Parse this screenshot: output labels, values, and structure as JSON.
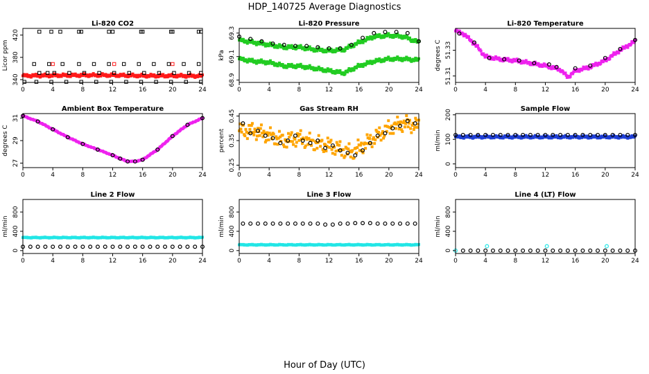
{
  "figure": {
    "title": "HDP_140725  Average Diagnostics",
    "xlabel": "Hour of Day (UTC)"
  },
  "chart_data": [
    {
      "type": "scatter",
      "title": "Li-820 CO2",
      "ylabel": "Licor ppm",
      "xlim": [
        0,
        24
      ],
      "xticks": [
        0,
        4,
        8,
        12,
        16,
        20,
        24
      ],
      "ylim": [
        335,
        432
      ],
      "yticks": [
        340,
        380,
        420
      ],
      "series": [
        {
          "style": "band",
          "color": "#ff1a1a",
          "x": [
            0,
            4,
            8,
            12,
            16,
            20,
            24
          ],
          "y": [
            347,
            347.5,
            348,
            348,
            347,
            347,
            346.5
          ],
          "spread": 3
        },
        {
          "style": "square",
          "color": "#000000",
          "x": [
            0.2,
            1.8,
            3.8,
            5.8,
            7.8,
            9.8,
            11.8,
            13.8,
            15.8,
            17.8,
            19.8,
            21.8,
            23.8
          ],
          "y": [
            336,
            336,
            336,
            336,
            336,
            336,
            336,
            336,
            336,
            336,
            336,
            336,
            336
          ]
        },
        {
          "style": "square",
          "color": "#000000",
          "x": [
            1.5,
            3.5,
            5.3,
            7.5,
            9.5,
            11.5,
            13.5,
            15.5,
            17.5,
            19.5,
            21.5,
            23.5
          ],
          "y": [
            368,
            368,
            368,
            368,
            368,
            368,
            368,
            368,
            368,
            368,
            368,
            368
          ]
        },
        {
          "style": "square",
          "color": "#000000",
          "x": [
            2.2,
            3.3,
            4.2,
            6.2,
            8.2,
            10.2,
            12.2,
            14.2,
            16.2,
            18.2,
            20.2,
            22.2,
            23.8
          ],
          "y": [
            352,
            352,
            352,
            352,
            352,
            352,
            352,
            352,
            352,
            352,
            352,
            352,
            352
          ]
        },
        {
          "style": "square",
          "color": "#000000",
          "x": [
            2.2,
            3.8,
            5.0,
            7.5,
            7.8,
            11.5,
            12.0,
            15.8,
            16.0,
            19.8,
            20.0,
            23.5,
            23.8
          ],
          "y": [
            426,
            426,
            426,
            426,
            426,
            426,
            426,
            426,
            426,
            426,
            426,
            426,
            426
          ]
        },
        {
          "style": "square",
          "color": "#ff1a1a",
          "x": [
            4.0,
            12.2,
            20.0
          ],
          "y": [
            368,
            368,
            368
          ]
        }
      ]
    },
    {
      "type": "scatter",
      "title": "Li-820 Pressure",
      "ylabel": "kPa",
      "xlim": [
        0,
        24
      ],
      "xticks": [
        0,
        4,
        8,
        12,
        16,
        20,
        24
      ],
      "ylim": [
        68.88,
        69.34
      ],
      "yticks": [
        68.9,
        69.1,
        69.3
      ],
      "series": [
        {
          "style": "band",
          "color": "#22cc22",
          "x": [
            0,
            2,
            4,
            6,
            8,
            10,
            12,
            14,
            16,
            18,
            20,
            22,
            24
          ],
          "y": [
            69.24,
            69.22,
            69.2,
            69.18,
            69.18,
            69.16,
            69.15,
            69.16,
            69.22,
            69.27,
            69.28,
            69.27,
            69.22
          ],
          "spread": 0.018
        },
        {
          "style": "band",
          "color": "#22cc22",
          "x": [
            0,
            2,
            4,
            6,
            8,
            10,
            12,
            14,
            16,
            18,
            20,
            22,
            24
          ],
          "y": [
            69.08,
            69.06,
            69.05,
            69.02,
            69.02,
            69.0,
            68.98,
            68.96,
            69.02,
            69.06,
            69.08,
            69.08,
            69.07
          ],
          "spread": 0.018
        },
        {
          "style": "circle",
          "color": "#000000",
          "x": [
            0,
            1.5,
            3,
            4.5,
            6,
            7.5,
            9,
            10.5,
            12,
            13.5,
            15,
            16.5,
            18,
            19.5,
            21,
            22.5,
            24
          ],
          "y": [
            69.27,
            69.25,
            69.23,
            69.21,
            69.2,
            69.19,
            69.19,
            69.18,
            69.17,
            69.17,
            69.2,
            69.26,
            69.3,
            69.31,
            69.31,
            69.3,
            69.23
          ]
        }
      ]
    },
    {
      "type": "scatter",
      "title": "Li-820 Temperature",
      "ylabel": "degrees C",
      "xlim": [
        0,
        24
      ],
      "xticks": [
        0,
        4,
        8,
        12,
        16,
        20,
        24
      ],
      "ylim": [
        51.305,
        51.347
      ],
      "yticks": [
        51.31,
        51.33
      ],
      "series": [
        {
          "style": "band",
          "color": "#ee22ee",
          "x": [
            0,
            1,
            2,
            3,
            4,
            6,
            8,
            10,
            12,
            14,
            15,
            16,
            18,
            20,
            22,
            24
          ],
          "y": [
            51.345,
            51.343,
            51.338,
            51.332,
            51.325,
            51.323,
            51.322,
            51.32,
            51.318,
            51.315,
            51.309,
            51.314,
            51.317,
            51.322,
            51.33,
            51.337
          ],
          "spread": 0.0015
        },
        {
          "style": "circle",
          "color": "#000000",
          "x": [
            0.5,
            2.5,
            4.5,
            6.5,
            8.5,
            10.5,
            12.5,
            13.5,
            16,
            18,
            20,
            22,
            24
          ],
          "y": [
            51.343,
            51.336,
            51.324,
            51.323,
            51.322,
            51.32,
            51.319,
            51.317,
            51.316,
            51.318,
            51.324,
            51.331,
            51.338
          ]
        }
      ]
    },
    {
      "type": "scatter",
      "title": "Ambient Box Temperature",
      "ylabel": "degrees C",
      "xlim": [
        0,
        24
      ],
      "xticks": [
        0,
        4,
        8,
        12,
        16,
        20,
        24
      ],
      "ylim": [
        26.6,
        31.4
      ],
      "yticks": [
        27,
        29,
        31
      ],
      "series": [
        {
          "style": "band",
          "color": "#ee22ee",
          "x": [
            0,
            2,
            4,
            6,
            8,
            10,
            12,
            13,
            14,
            15,
            16,
            18,
            20,
            22,
            24
          ],
          "y": [
            31.2,
            30.7,
            30.0,
            29.3,
            28.7,
            28.2,
            27.7,
            27.4,
            27.15,
            27.15,
            27.3,
            28.2,
            29.4,
            30.4,
            31.0
          ],
          "spread": 0.04
        },
        {
          "style": "circle",
          "color": "#000000",
          "x": [
            0,
            2,
            4,
            6,
            8,
            10,
            12,
            13,
            14,
            15,
            16,
            18,
            20,
            22,
            24
          ],
          "y": [
            31.2,
            30.7,
            30.0,
            29.3,
            28.7,
            28.2,
            27.7,
            27.4,
            27.15,
            27.15,
            27.3,
            28.2,
            29.4,
            30.4,
            31.0
          ]
        }
      ]
    },
    {
      "type": "scatter",
      "title": "Gas Stream RH",
      "ylabel": "percent",
      "xlim": [
        0,
        24
      ],
      "xticks": [
        0,
        4,
        8,
        12,
        16,
        20,
        24
      ],
      "ylim": [
        0.24,
        0.46
      ],
      "yticks": [
        0.25,
        0.35,
        0.45
      ],
      "series": [
        {
          "style": "band",
          "color": "#ffa500",
          "x": [
            0,
            2,
            4,
            6,
            8,
            10,
            12,
            14,
            15,
            16,
            18,
            20,
            22,
            24
          ],
          "y": [
            0.39,
            0.39,
            0.37,
            0.35,
            0.36,
            0.34,
            0.33,
            0.31,
            0.3,
            0.32,
            0.36,
            0.4,
            0.42,
            0.41
          ],
          "spread": 0.035
        },
        {
          "style": "circle",
          "color": "#000000",
          "x": [
            0.5,
            1.5,
            2.5,
            3.5,
            4.5,
            5.5,
            6.5,
            7.5,
            8.5,
            9.5,
            10.5,
            11.5,
            12.5,
            13.5,
            14.5,
            15.5,
            16.5,
            17.5,
            18.5,
            19.5,
            20.5,
            21.5,
            22.5,
            23.5
          ],
          "y": [
            0.42,
            0.38,
            0.39,
            0.37,
            0.36,
            0.34,
            0.35,
            0.37,
            0.35,
            0.34,
            0.35,
            0.32,
            0.33,
            0.31,
            0.3,
            0.29,
            0.31,
            0.34,
            0.37,
            0.38,
            0.4,
            0.41,
            0.43,
            0.42
          ]
        }
      ]
    },
    {
      "type": "scatter",
      "title": "Sample Flow",
      "ylabel": "ml/min",
      "xlim": [
        0,
        24
      ],
      "xticks": [
        0,
        4,
        8,
        12,
        16,
        20,
        24
      ],
      "ylim": [
        -15,
        205
      ],
      "yticks": [
        0,
        100,
        200
      ],
      "series": [
        {
          "style": "band",
          "color": "#1f3fd6",
          "x": [
            0,
            24
          ],
          "y": [
            110,
            110
          ],
          "spread": 6
        },
        {
          "style": "circle",
          "color": "#000000",
          "x": [
            0,
            1,
            2,
            3,
            4,
            5,
            6,
            7,
            8,
            9,
            10,
            11,
            12,
            13,
            14,
            15,
            16,
            17,
            18,
            19,
            20,
            21,
            22,
            23,
            24
          ],
          "y": [
            118,
            118,
            118,
            118,
            118,
            118,
            118,
            118,
            118,
            118,
            118,
            118,
            118,
            118,
            118,
            118,
            118,
            118,
            118,
            118,
            118,
            118,
            118,
            118,
            118
          ]
        }
      ]
    },
    {
      "type": "scatter",
      "title": "Line 2 Flow",
      "ylabel": "ml/min",
      "xlim": [
        0,
        24
      ],
      "xticks": [
        0,
        4,
        8,
        12,
        16,
        20,
        24
      ],
      "ylim": [
        -60,
        1060
      ],
      "yticks": [
        0,
        400,
        800
      ],
      "series": [
        {
          "style": "band",
          "color": "#22e6e6",
          "x": [
            0,
            24
          ],
          "y": [
            270,
            270
          ],
          "spread": 12
        },
        {
          "style": "circle",
          "color": "#000000",
          "x": [
            0,
            1,
            2,
            3,
            4,
            5,
            6,
            7,
            8,
            9,
            10,
            11,
            12,
            13,
            14,
            15,
            16,
            17,
            18,
            19,
            20,
            21,
            22,
            23,
            24
          ],
          "y": [
            80,
            80,
            80,
            80,
            80,
            80,
            80,
            80,
            80,
            80,
            80,
            80,
            80,
            80,
            80,
            80,
            80,
            80,
            80,
            80,
            80,
            80,
            80,
            80,
            80
          ]
        }
      ]
    },
    {
      "type": "scatter",
      "title": "Line 3 Flow",
      "ylabel": "ml/min",
      "xlim": [
        0,
        24
      ],
      "xticks": [
        0,
        4,
        8,
        12,
        16,
        20,
        24
      ],
      "ylim": [
        -60,
        1060
      ],
      "yticks": [
        0,
        400,
        800
      ],
      "series": [
        {
          "style": "band",
          "color": "#22e6e6",
          "x": [
            0,
            24
          ],
          "y": [
            120,
            120
          ],
          "spread": 12
        },
        {
          "style": "circle",
          "color": "#000000",
          "x": [
            0.5,
            1.5,
            2.5,
            3.5,
            4.5,
            5.5,
            6.5,
            7.5,
            8.5,
            9.5,
            10.5,
            11.5,
            12.5,
            13.5,
            14.5,
            15.5,
            16.5,
            17.5,
            18.5,
            19.5,
            20.5,
            21.5,
            22.5,
            23.5
          ],
          "y": [
            560,
            560,
            560,
            560,
            560,
            560,
            560,
            560,
            560,
            560,
            560,
            540,
            540,
            560,
            560,
            570,
            570,
            570,
            560,
            560,
            560,
            560,
            560,
            560
          ]
        }
      ]
    },
    {
      "type": "scatter",
      "title": "Line 4 (LT) Flow",
      "ylabel": "ml/min",
      "xlim": [
        0,
        24
      ],
      "xticks": [
        0,
        4,
        8,
        12,
        16,
        20,
        24
      ],
      "ylim": [
        -60,
        1060
      ],
      "yticks": [
        0,
        400,
        800
      ],
      "series": [
        {
          "style": "circle",
          "color": "#22e6e6",
          "x": [
            0,
            4.2,
            12.2,
            20.2
          ],
          "y": [
            0,
            90,
            90,
            90
          ]
        },
        {
          "style": "circle",
          "color": "#000000",
          "x": [
            1,
            2,
            3,
            4,
            5,
            6,
            7,
            8,
            9,
            10,
            11,
            12,
            13,
            14,
            15,
            16,
            17,
            18,
            19,
            20,
            21,
            22,
            23,
            24
          ],
          "y": [
            0,
            0,
            0,
            0,
            0,
            0,
            0,
            0,
            0,
            0,
            0,
            0,
            0,
            0,
            0,
            0,
            0,
            0,
            0,
            0,
            0,
            0,
            0,
            0
          ]
        }
      ]
    }
  ]
}
